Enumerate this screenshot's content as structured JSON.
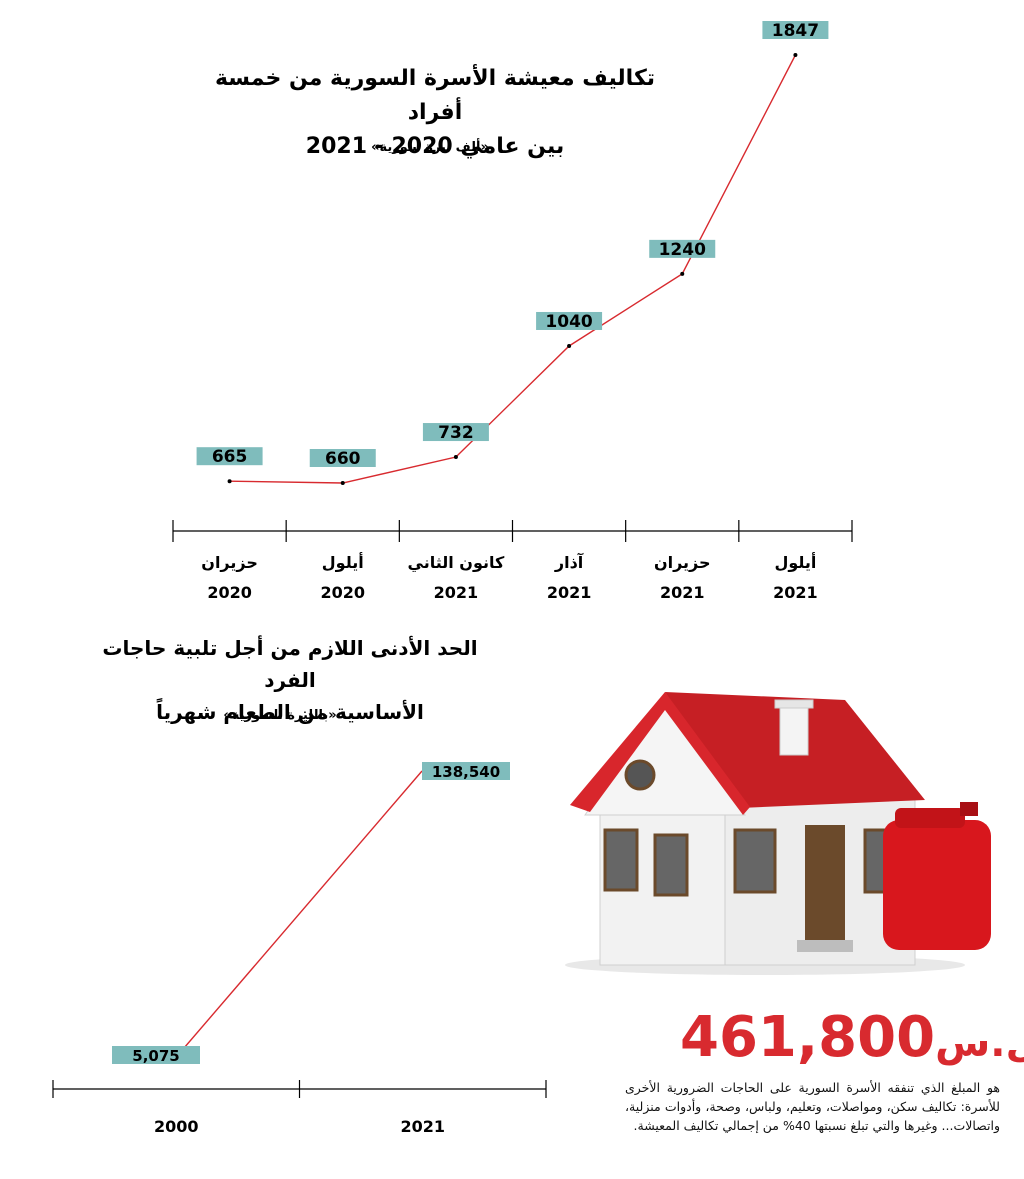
{
  "chart_data": [
    {
      "type": "line",
      "title": "تكاليف معيشة الأسرة السورية من خمسة أفراد",
      "subtitle": "بين عامي 2020 - 2021",
      "unit": "«ألف ليرة سورية»",
      "categories": [
        {
          "month": "حزيران",
          "year": "2020"
        },
        {
          "month": "أيلول",
          "year": "2020"
        },
        {
          "month": "كانون الثاني",
          "year": "2021"
        },
        {
          "month": "آذار",
          "year": "2021"
        },
        {
          "month": "حزيران",
          "year": "2021"
        },
        {
          "month": "أيلول",
          "year": "2021"
        }
      ],
      "values": [
        665,
        660,
        732,
        1040,
        1240,
        1847
      ],
      "labels": [
        "665",
        "660",
        "732",
        "1040",
        "1240",
        "1847"
      ],
      "line_color": "#d82a2f",
      "label_bg": "#7fbcbc"
    },
    {
      "type": "line",
      "title": "الحد الأدنى اللازم من أجل تلبية حاجات الفرد",
      "subtitle": "الأساسية من الطعام شهرياً",
      "unit": "«بالليرة السورية»",
      "categories": [
        "2000",
        "2021"
      ],
      "values": [
        5075,
        138540
      ],
      "labels": [
        "5,075",
        "138,540"
      ],
      "line_color": "#d82a2f",
      "label_bg": "#7fbcbc"
    }
  ],
  "info": {
    "amount": "461,800",
    "currency": "ل.س",
    "text": "هو المبلغ الذي تنفقه الأسرة السورية على الحاجات الضرورية الأخرى للأسرة: تكاليف سكن، ومواصلات، وتعليم، ولباس، وصحة، وأدوات منزلية، واتصالات... وغيرها والتي تبلغ نسبتها 40% من إجمالي تكاليف المعيشة.",
    "color": "#d82a2f"
  },
  "illustration": {
    "icon": "house-with-jerrycan-icon"
  }
}
